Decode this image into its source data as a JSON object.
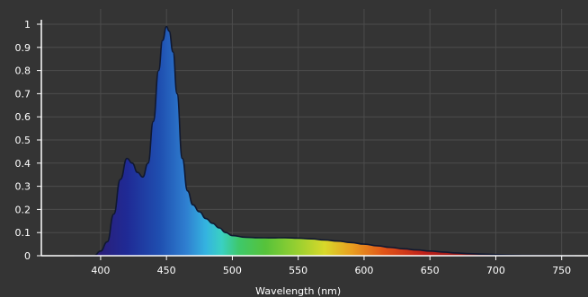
{
  "chart_data": {
    "type": "area",
    "title": "",
    "xlabel": "Wavelength (nm)",
    "ylabel": "",
    "xlim": [
      355,
      770
    ],
    "ylim": [
      0,
      1
    ],
    "x_ticks": [
      400,
      450,
      500,
      550,
      600,
      650,
      700,
      750
    ],
    "x_tick_labels": [
      "400",
      "450",
      "500",
      "550",
      "600",
      "650",
      "700",
      "750"
    ],
    "y_ticks": [
      0,
      0.1,
      0.2,
      0.3,
      0.4,
      0.5,
      0.6,
      0.7,
      0.8,
      0.9,
      1
    ],
    "y_tick_labels": [
      "0",
      "0.1",
      "0.2",
      "0.3",
      "0.4",
      "0.5",
      "0.6",
      "0.7",
      "0.8",
      "0.9",
      "1"
    ],
    "grid": true,
    "legend": "none",
    "fill": "visible-spectrum gradient",
    "series": [
      {
        "x": [
          380,
          395,
          400,
          405,
          410,
          415,
          420,
          424,
          428,
          432,
          436,
          440,
          444,
          447,
          450,
          452,
          455,
          458,
          462,
          466,
          470,
          475,
          480,
          485,
          490,
          495,
          500,
          510,
          520,
          530,
          540,
          550,
          560,
          570,
          580,
          590,
          600,
          610,
          620,
          630,
          640,
          650,
          660,
          670,
          680,
          690,
          700,
          710,
          720,
          730,
          740,
          750,
          760
        ],
        "values": [
          0,
          0,
          0.02,
          0.06,
          0.18,
          0.33,
          0.42,
          0.4,
          0.36,
          0.34,
          0.4,
          0.58,
          0.8,
          0.93,
          0.99,
          0.97,
          0.88,
          0.7,
          0.42,
          0.28,
          0.22,
          0.19,
          0.16,
          0.14,
          0.12,
          0.1,
          0.087,
          0.08,
          0.078,
          0.077,
          0.078,
          0.076,
          0.073,
          0.068,
          0.063,
          0.057,
          0.05,
          0.043,
          0.036,
          0.03,
          0.025,
          0.02,
          0.016,
          0.012,
          0.009,
          0.007,
          0.005,
          0.003,
          0.002,
          0.001,
          0.001,
          0,
          0
        ]
      }
    ]
  }
}
